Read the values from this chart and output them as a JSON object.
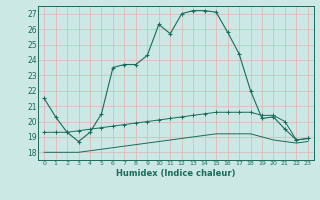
{
  "xlabel": "Humidex (Indice chaleur)",
  "bg_color": "#cce8e4",
  "grid_color": "#ddbbbb",
  "line_color": "#1a6b5a",
  "xlim": [
    -0.5,
    23.5
  ],
  "ylim": [
    17.5,
    27.5
  ],
  "yticks": [
    18,
    19,
    20,
    21,
    22,
    23,
    24,
    25,
    26,
    27
  ],
  "xticks": [
    0,
    1,
    2,
    3,
    4,
    5,
    6,
    7,
    8,
    9,
    10,
    11,
    12,
    13,
    14,
    15,
    16,
    17,
    18,
    19,
    20,
    21,
    22,
    23
  ],
  "xtick_labels": [
    "0",
    "1",
    "2",
    "3",
    "4",
    "5",
    "6",
    "7",
    "8",
    "9",
    "10",
    "11",
    "12",
    "13",
    "14",
    "15",
    "16",
    "17",
    "18",
    "19",
    "20",
    "21",
    "22",
    "23"
  ],
  "line1_x": [
    0,
    1,
    2,
    3,
    4,
    5,
    6,
    7,
    8,
    9,
    10,
    11,
    12,
    13,
    14,
    15,
    16,
    17,
    18,
    19,
    20,
    21,
    22,
    23
  ],
  "line1_y": [
    21.5,
    20.3,
    19.3,
    18.7,
    19.3,
    20.5,
    23.5,
    23.7,
    23.7,
    24.3,
    26.3,
    25.7,
    27.0,
    27.2,
    27.2,
    27.1,
    25.8,
    24.4,
    22.0,
    20.2,
    20.3,
    19.5,
    18.8,
    18.9
  ],
  "line2_x": [
    0,
    1,
    2,
    3,
    4,
    5,
    6,
    7,
    8,
    9,
    10,
    11,
    12,
    13,
    14,
    15,
    16,
    17,
    18,
    19,
    20,
    21,
    22,
    23
  ],
  "line2_y": [
    19.3,
    19.3,
    19.3,
    19.4,
    19.5,
    19.6,
    19.7,
    19.8,
    19.9,
    20.0,
    20.1,
    20.2,
    20.3,
    20.4,
    20.5,
    20.6,
    20.6,
    20.6,
    20.6,
    20.4,
    20.4,
    20.0,
    18.8,
    18.9
  ],
  "line3_x": [
    0,
    1,
    2,
    3,
    4,
    5,
    6,
    7,
    8,
    9,
    10,
    11,
    12,
    13,
    14,
    15,
    16,
    17,
    18,
    19,
    20,
    21,
    22,
    23
  ],
  "line3_y": [
    18.0,
    18.0,
    18.0,
    18.0,
    18.1,
    18.2,
    18.3,
    18.4,
    18.5,
    18.6,
    18.7,
    18.8,
    18.9,
    19.0,
    19.1,
    19.2,
    19.2,
    19.2,
    19.2,
    19.0,
    18.8,
    18.7,
    18.6,
    18.7
  ]
}
